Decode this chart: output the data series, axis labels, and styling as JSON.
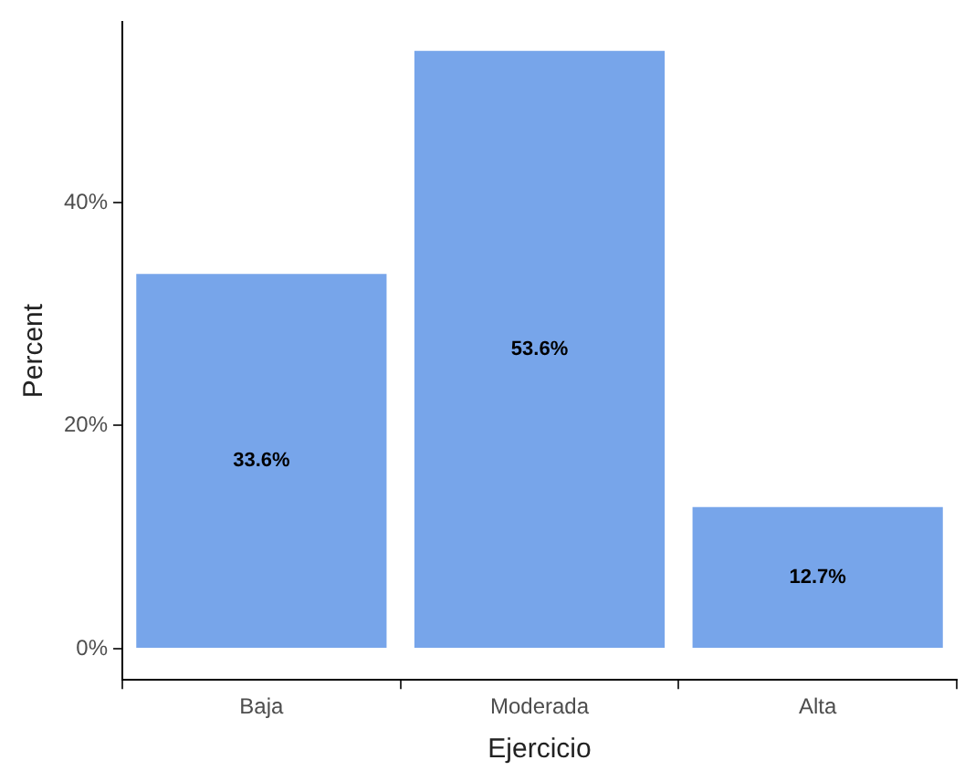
{
  "chart_data": {
    "type": "bar",
    "xlabel": "Ejercicio",
    "ylabel": "Percent",
    "categories": [
      "Baja",
      "Moderada",
      "Alta"
    ],
    "values": [
      33.6,
      53.6,
      12.7
    ],
    "color": "#77a5ea",
    "value_labels": [
      "33.6%",
      "53.6%",
      "12.7%"
    ],
    "ylim": [
      -2.8,
      56.2
    ],
    "yticks": [
      {
        "value": 0,
        "label": "0%"
      },
      {
        "value": 20,
        "label": "20%"
      },
      {
        "value": 40,
        "label": "40%"
      }
    ],
    "grid": false,
    "legend": false
  }
}
